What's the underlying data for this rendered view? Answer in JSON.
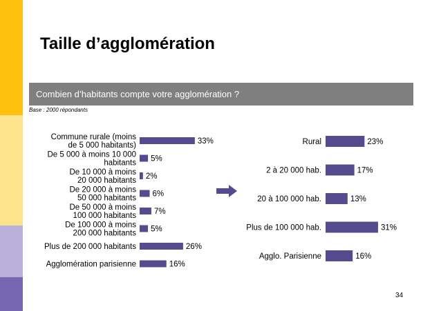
{
  "colors": {
    "stripe_top": "#FDC10E",
    "stripe_mid": "#FCE38C",
    "stripe_lower": "#B9B0D9",
    "stripe_bottom": "#7567B2",
    "question_bar": "#7F7F7F",
    "bars": "#544C8F"
  },
  "slide": {
    "title": "Taille d’agglomération",
    "question": "Combien d’habitants compte votre agglomération ?",
    "base_note": "Base : 2000 répondants",
    "page_number": "34"
  },
  "arrow_icon": "right-arrow-icon",
  "chart_data": [
    {
      "type": "bar",
      "orientation": "horizontal",
      "categories": [
        [
          "Commune rurale (moins",
          "de 5 000 habitants)"
        ],
        [
          "De 5 000 à moins 10 000",
          "habitants"
        ],
        [
          "De 10 000 à moins",
          "20 000 habitants"
        ],
        [
          "De 20 000 à moins",
          "50 000 habitants"
        ],
        [
          "De 50 000 à moins",
          "100 000 habitants"
        ],
        [
          "De 100 000 à moins",
          "200 000 habitants"
        ],
        [
          "Plus de 200 000 habitants"
        ],
        [
          "Agglomération parisienne"
        ]
      ],
      "values": [
        33,
        5,
        2,
        6,
        7,
        5,
        26,
        16
      ],
      "labels": [
        "33%",
        "5%",
        "2%",
        "6%",
        "7%",
        "5%",
        "26%",
        "16%"
      ],
      "unit": "%",
      "xlim": [
        0,
        35
      ]
    },
    {
      "type": "bar",
      "orientation": "horizontal",
      "categories": [
        [
          "Rural"
        ],
        [
          "2 à 20 000 hab."
        ],
        [
          "20 à 100 000 hab."
        ],
        [
          "Plus de 100 000 hab."
        ],
        [
          "Agglo. Parisienne"
        ]
      ],
      "values": [
        23,
        17,
        13,
        31,
        16
      ],
      "labels": [
        "23%",
        "17%",
        "13%",
        "31%",
        "16%"
      ],
      "unit": "%",
      "xlim": [
        0,
        35
      ]
    }
  ]
}
